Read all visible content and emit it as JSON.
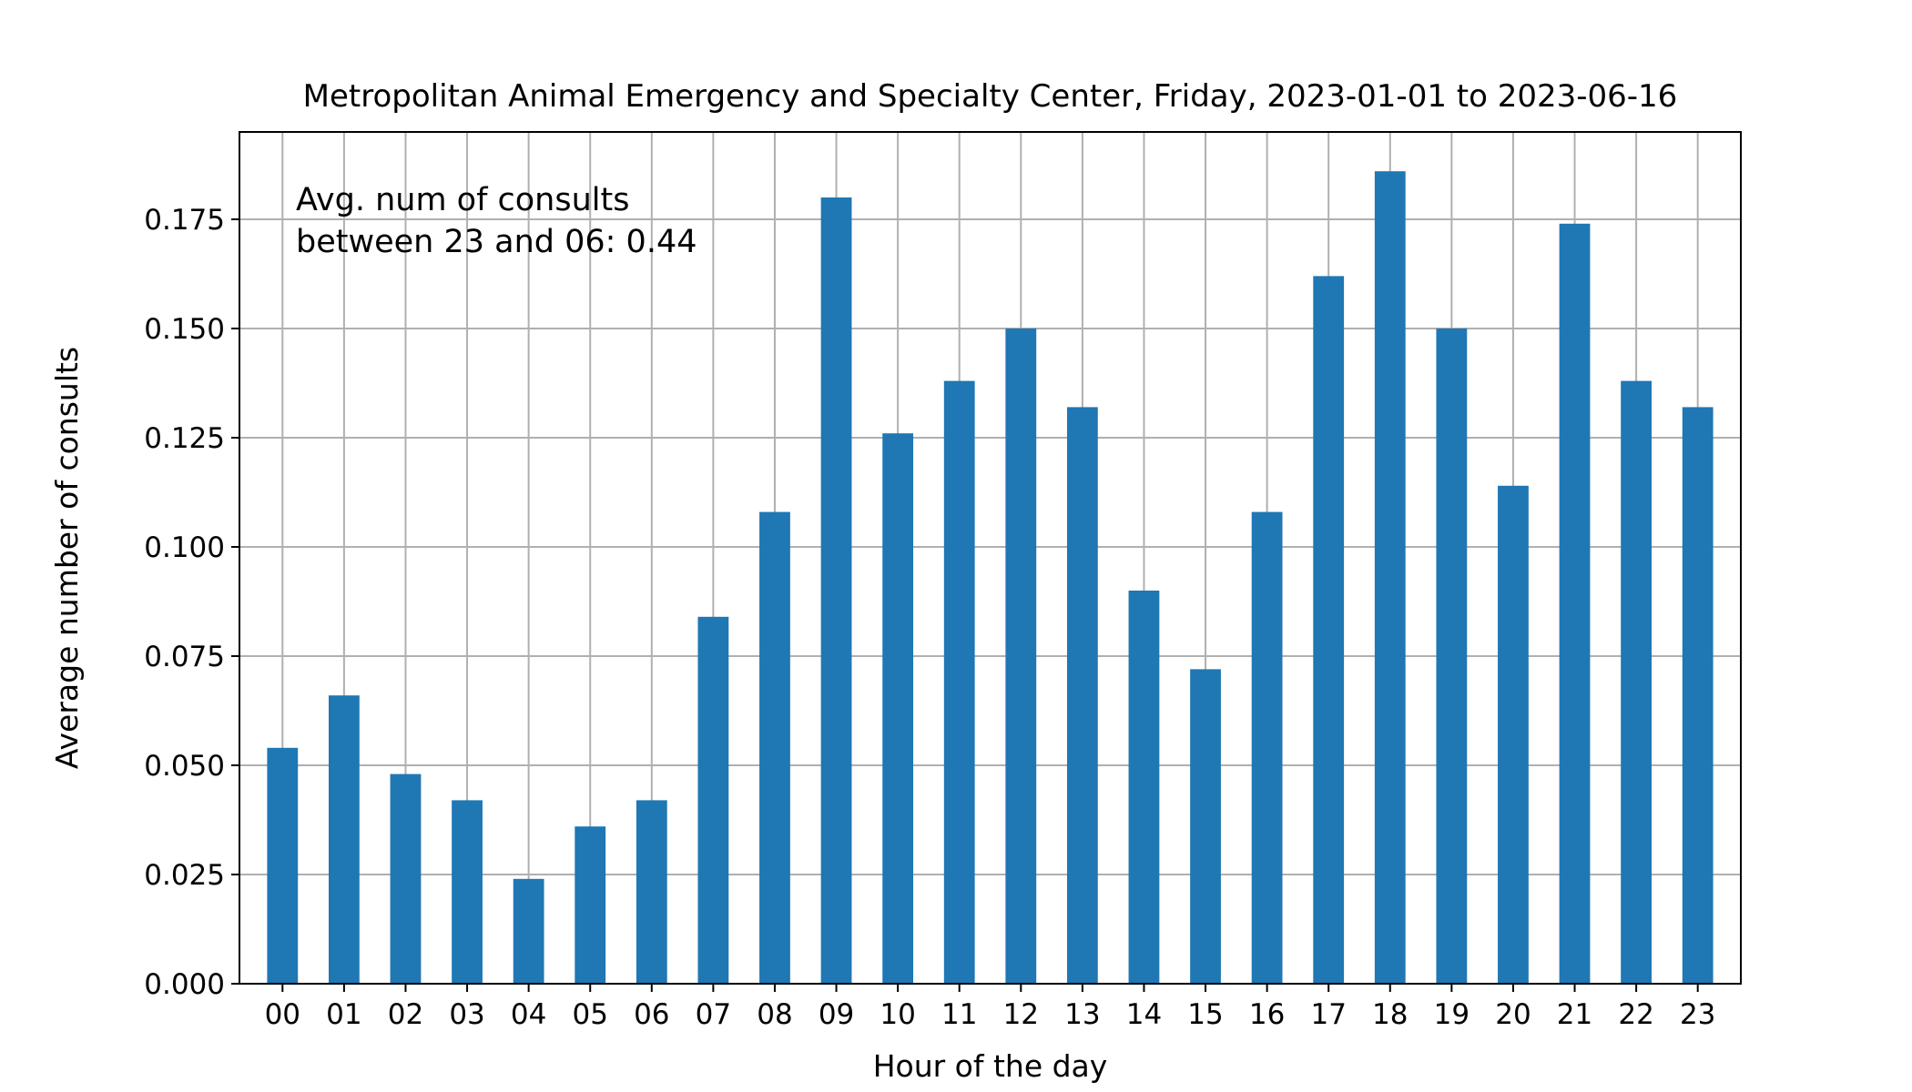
{
  "chart_data": {
    "type": "bar",
    "title": "Metropolitan Animal Emergency and Specialty Center, Friday, 2023-01-01 to 2023-06-16",
    "xlabel": "Hour of the day",
    "ylabel": "Average number of consults",
    "categories": [
      "00",
      "01",
      "02",
      "03",
      "04",
      "05",
      "06",
      "07",
      "08",
      "09",
      "10",
      "11",
      "12",
      "13",
      "14",
      "15",
      "16",
      "17",
      "18",
      "19",
      "20",
      "21",
      "22",
      "23"
    ],
    "values": [
      0.054,
      0.066,
      0.048,
      0.042,
      0.024,
      0.036,
      0.042,
      0.084,
      0.108,
      0.18,
      0.126,
      0.138,
      0.15,
      0.132,
      0.09,
      0.072,
      0.108,
      0.162,
      0.186,
      0.15,
      0.114,
      0.174,
      0.138,
      0.132
    ],
    "ylim": [
      0,
      0.195
    ],
    "yticks": [
      "0.000",
      "0.025",
      "0.050",
      "0.075",
      "0.100",
      "0.125",
      "0.150",
      "0.175"
    ],
    "annotation": [
      "Avg. num of consults",
      "between 23 and 06: 0.44"
    ],
    "grid": true,
    "bar_color": "#1f77b4"
  }
}
